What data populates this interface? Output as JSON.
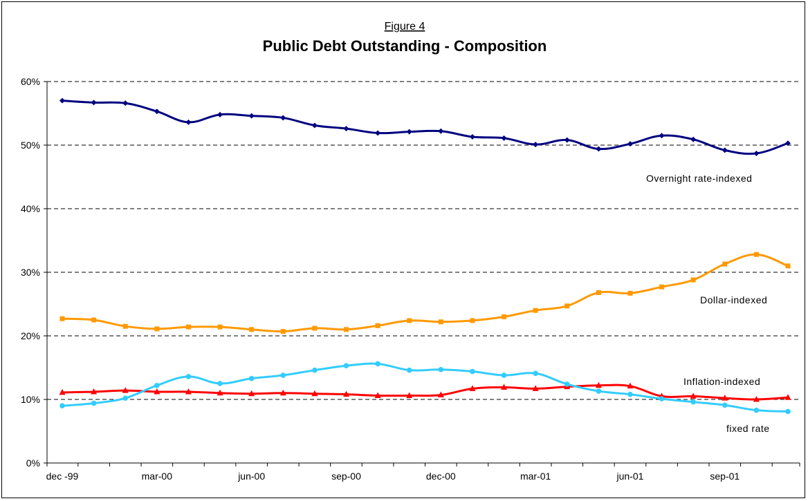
{
  "chart_data": {
    "type": "line",
    "figure_label": "Figure 4",
    "title": "Public Debt Outstanding - Composition",
    "xlabel": "",
    "ylabel": "",
    "ylim": [
      0,
      60
    ],
    "y_ticks": [
      0,
      10,
      20,
      30,
      40,
      50,
      60
    ],
    "y_tick_labels": [
      "0%",
      "10%",
      "20%",
      "30%",
      "40%",
      "50%",
      "60%"
    ],
    "x_tick_labels": [
      {
        "label": "dec -99",
        "index": 0
      },
      {
        "label": "mar-00",
        "index": 3
      },
      {
        "label": "jun-00",
        "index": 6
      },
      {
        "label": "sep-00",
        "index": 9
      },
      {
        "label": "dec-00",
        "index": 12
      },
      {
        "label": "mar-01",
        "index": 15
      },
      {
        "label": "jun-01",
        "index": 18
      },
      {
        "label": "sep-01",
        "index": 21
      }
    ],
    "categories": [
      "dec-99",
      "jan-00",
      "feb-00",
      "mar-00",
      "apr-00",
      "may-00",
      "jun-00",
      "jul-00",
      "aug-00",
      "sep-00",
      "oct-00",
      "nov-00",
      "dec-00",
      "jan-01",
      "feb-01",
      "mar-01",
      "apr-01",
      "may-01",
      "jun-01",
      "jul-01",
      "aug-01",
      "sep-01",
      "oct-01",
      "nov-01"
    ],
    "grid": "horizontal dashed",
    "series": [
      {
        "name": "Overnight rate-indexed",
        "color": "#000080",
        "marker": "diamond",
        "values": [
          57.0,
          56.7,
          56.6,
          55.3,
          53.6,
          54.8,
          54.6,
          54.3,
          53.1,
          52.6,
          51.9,
          52.1,
          52.2,
          51.3,
          51.1,
          50.1,
          50.8,
          49.4,
          50.2,
          51.5,
          50.9,
          49.2,
          48.7,
          50.3
        ]
      },
      {
        "name": "Dollar-indexed",
        "color": "#FF9900",
        "marker": "square",
        "values": [
          22.7,
          22.5,
          21.5,
          21.1,
          21.4,
          21.4,
          21.0,
          20.7,
          21.2,
          21.0,
          21.6,
          22.4,
          22.2,
          22.4,
          23.0,
          24.0,
          24.7,
          26.8,
          26.7,
          27.7,
          28.8,
          31.3,
          32.8,
          31.0
        ]
      },
      {
        "name": "Inflation-indexed",
        "color": "#FF0000",
        "marker": "triangle",
        "values": [
          11.1,
          11.2,
          11.4,
          11.2,
          11.2,
          11.0,
          10.9,
          11.0,
          10.9,
          10.8,
          10.6,
          10.6,
          10.7,
          11.7,
          11.9,
          11.7,
          12.0,
          12.2,
          12.1,
          10.5,
          10.5,
          10.2,
          10.0,
          10.3
        ]
      },
      {
        "name": "fixed rate",
        "color": "#33CCFF",
        "marker": "circle",
        "values": [
          9.0,
          9.4,
          10.2,
          12.2,
          13.6,
          12.5,
          13.3,
          13.8,
          14.6,
          15.3,
          15.6,
          14.6,
          14.7,
          14.4,
          13.8,
          14.1,
          12.4,
          11.3,
          10.8,
          10.1,
          9.6,
          9.1,
          8.3,
          8.1
        ]
      }
    ]
  }
}
